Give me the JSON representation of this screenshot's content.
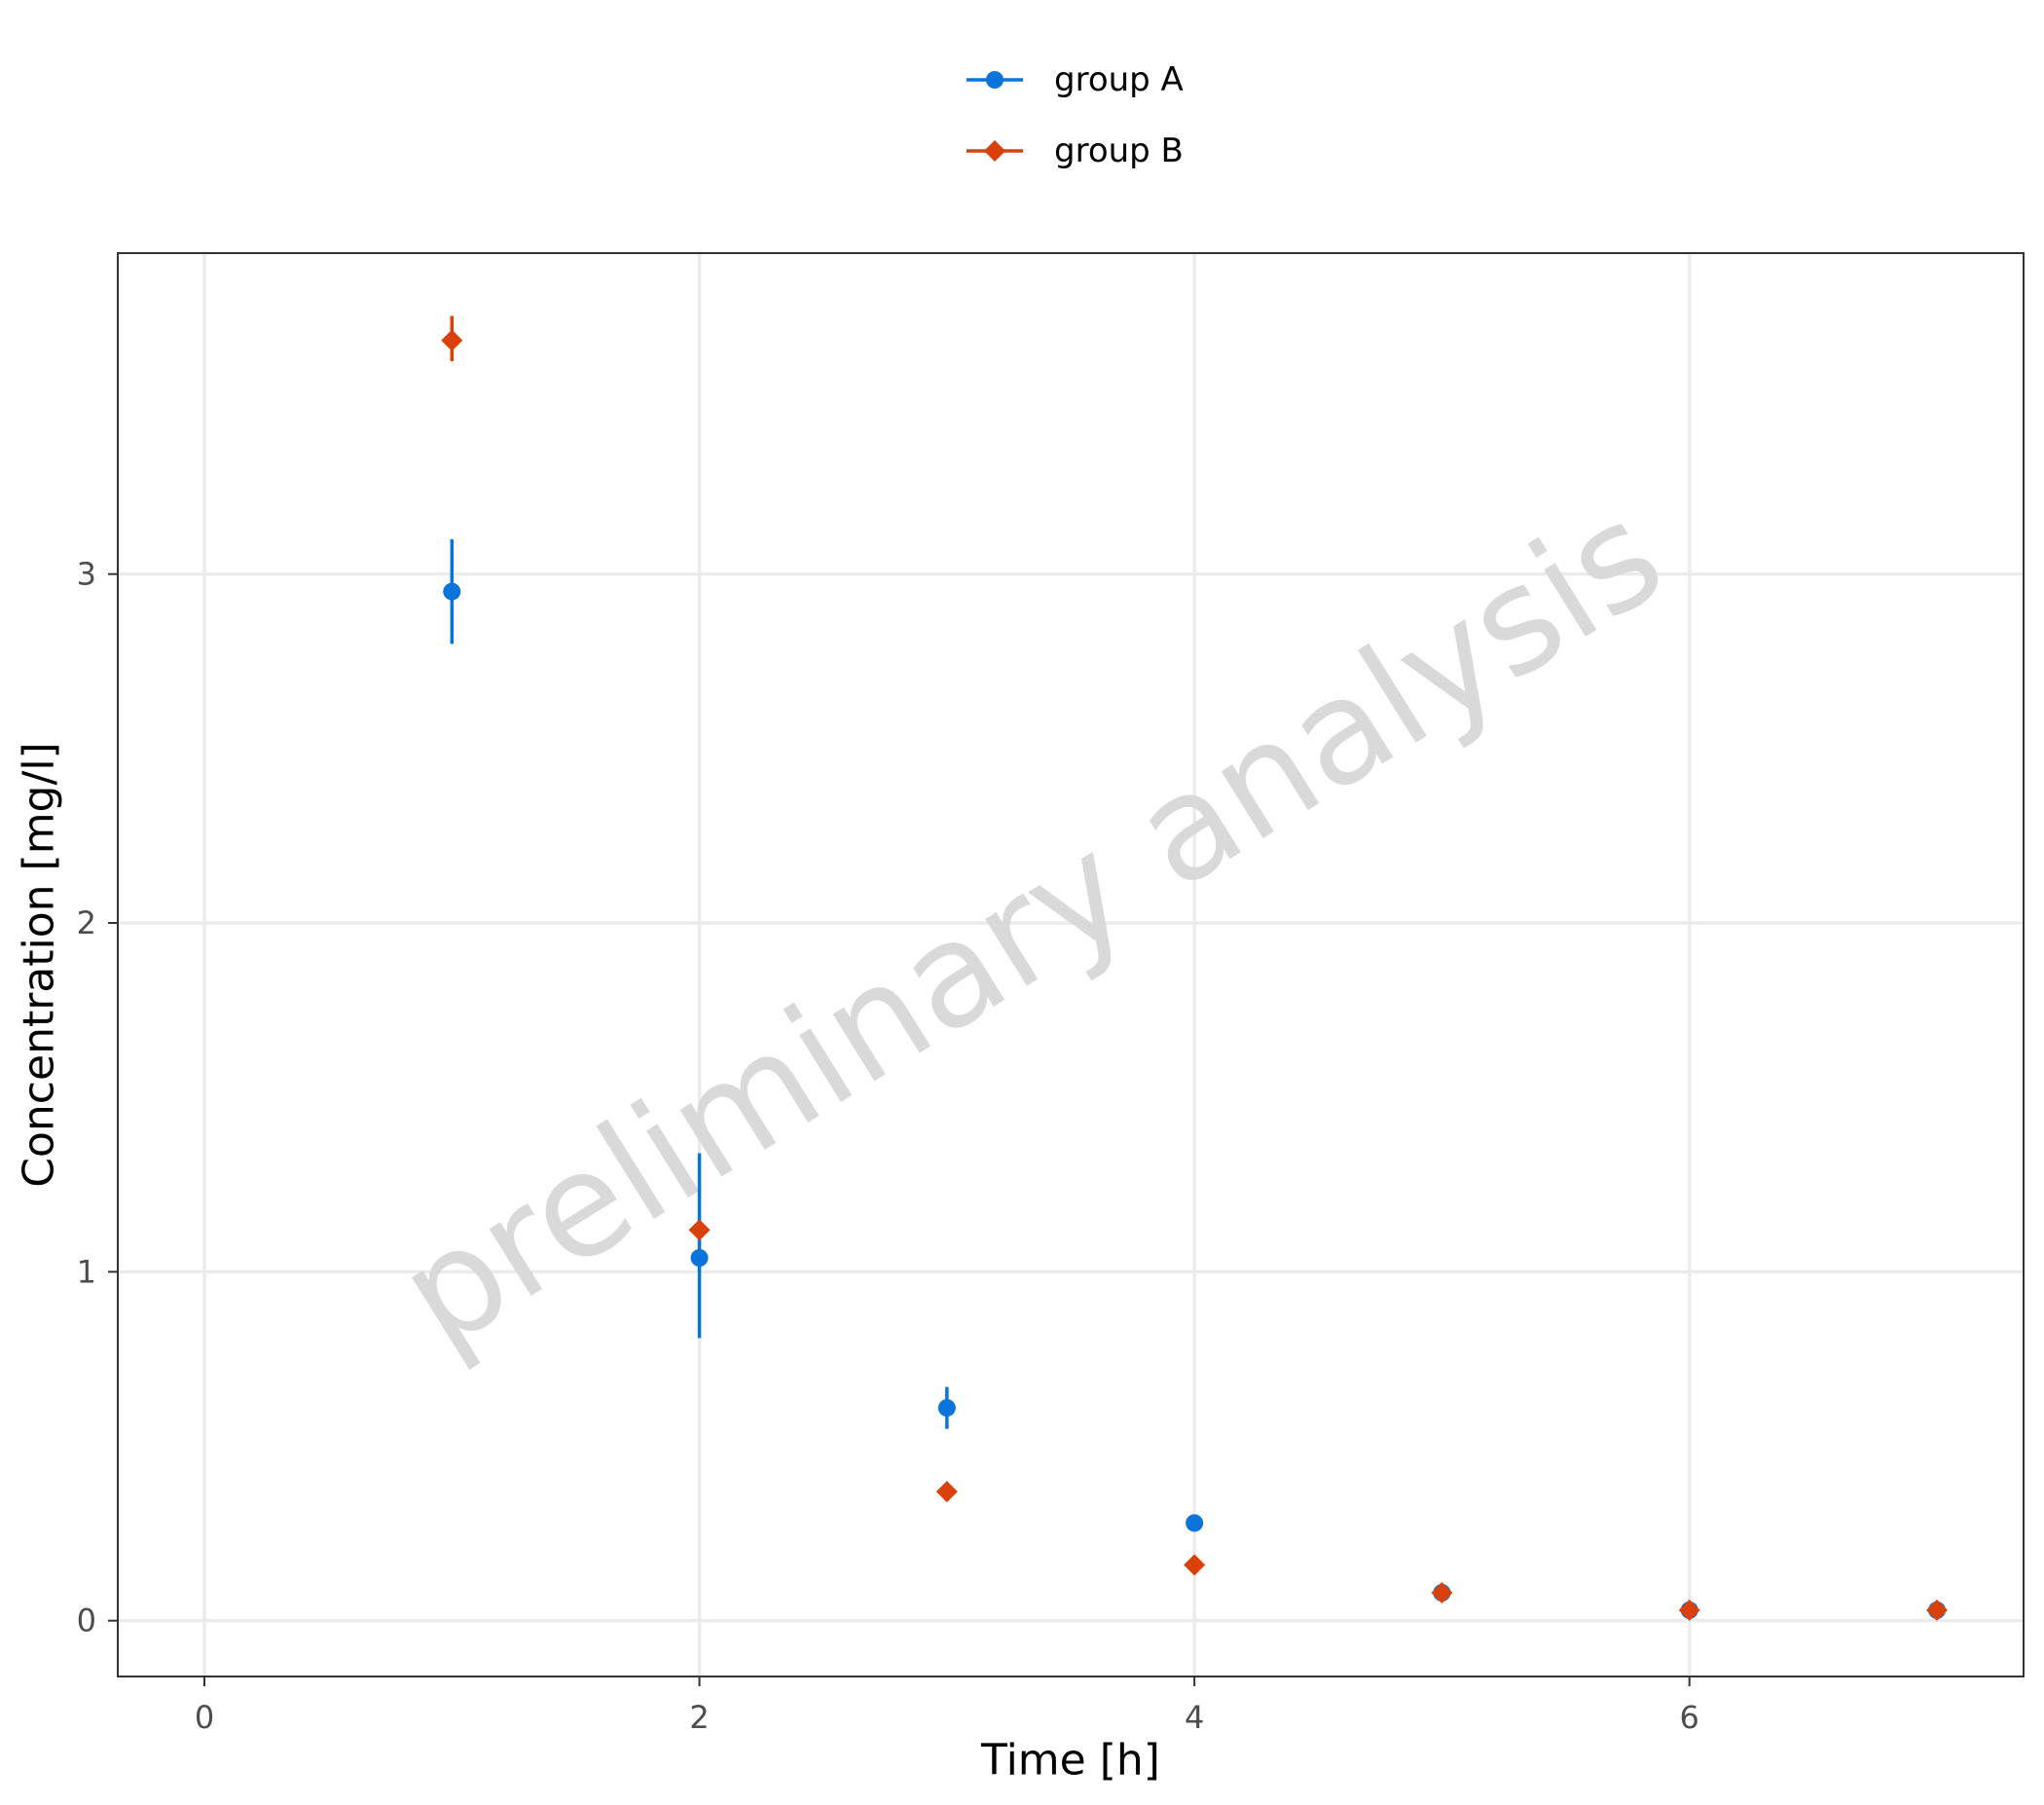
{
  "chart_data": {
    "type": "scatter",
    "xlabel": "Time [h]",
    "ylabel": "Concentration [mg/l]",
    "xlim": [
      -0.35,
      7.35
    ],
    "ylim": [
      -0.16,
      3.92
    ],
    "xticks": [
      0,
      2,
      4,
      6
    ],
    "yticks": [
      0,
      1,
      2,
      3
    ],
    "grid": true,
    "legend_position": "top",
    "watermark": "preliminary analysis",
    "series": [
      {
        "name": "group A",
        "color": "#0a74da",
        "marker": "circle",
        "points": [
          {
            "x": 1,
            "y": 2.95,
            "err_low": 2.8,
            "err_high": 3.1
          },
          {
            "x": 2,
            "y": 1.04,
            "err_low": 0.81,
            "err_high": 1.34
          },
          {
            "x": 3,
            "y": 0.61,
            "err_low": 0.55,
            "err_high": 0.67
          },
          {
            "x": 4,
            "y": 0.28
          },
          {
            "x": 5,
            "y": 0.08
          },
          {
            "x": 6,
            "y": 0.03
          },
          {
            "x": 7,
            "y": 0.03
          }
        ]
      },
      {
        "name": "group B",
        "color": "#d9400a",
        "marker": "diamond",
        "points": [
          {
            "x": 1,
            "y": 3.67,
            "err_low": 3.61,
            "err_high": 3.74
          },
          {
            "x": 2,
            "y": 1.12
          },
          {
            "x": 3,
            "y": 0.37
          },
          {
            "x": 4,
            "y": 0.16
          },
          {
            "x": 5,
            "y": 0.08
          },
          {
            "x": 6,
            "y": 0.03
          },
          {
            "x": 7,
            "y": 0.03
          }
        ]
      }
    ]
  }
}
